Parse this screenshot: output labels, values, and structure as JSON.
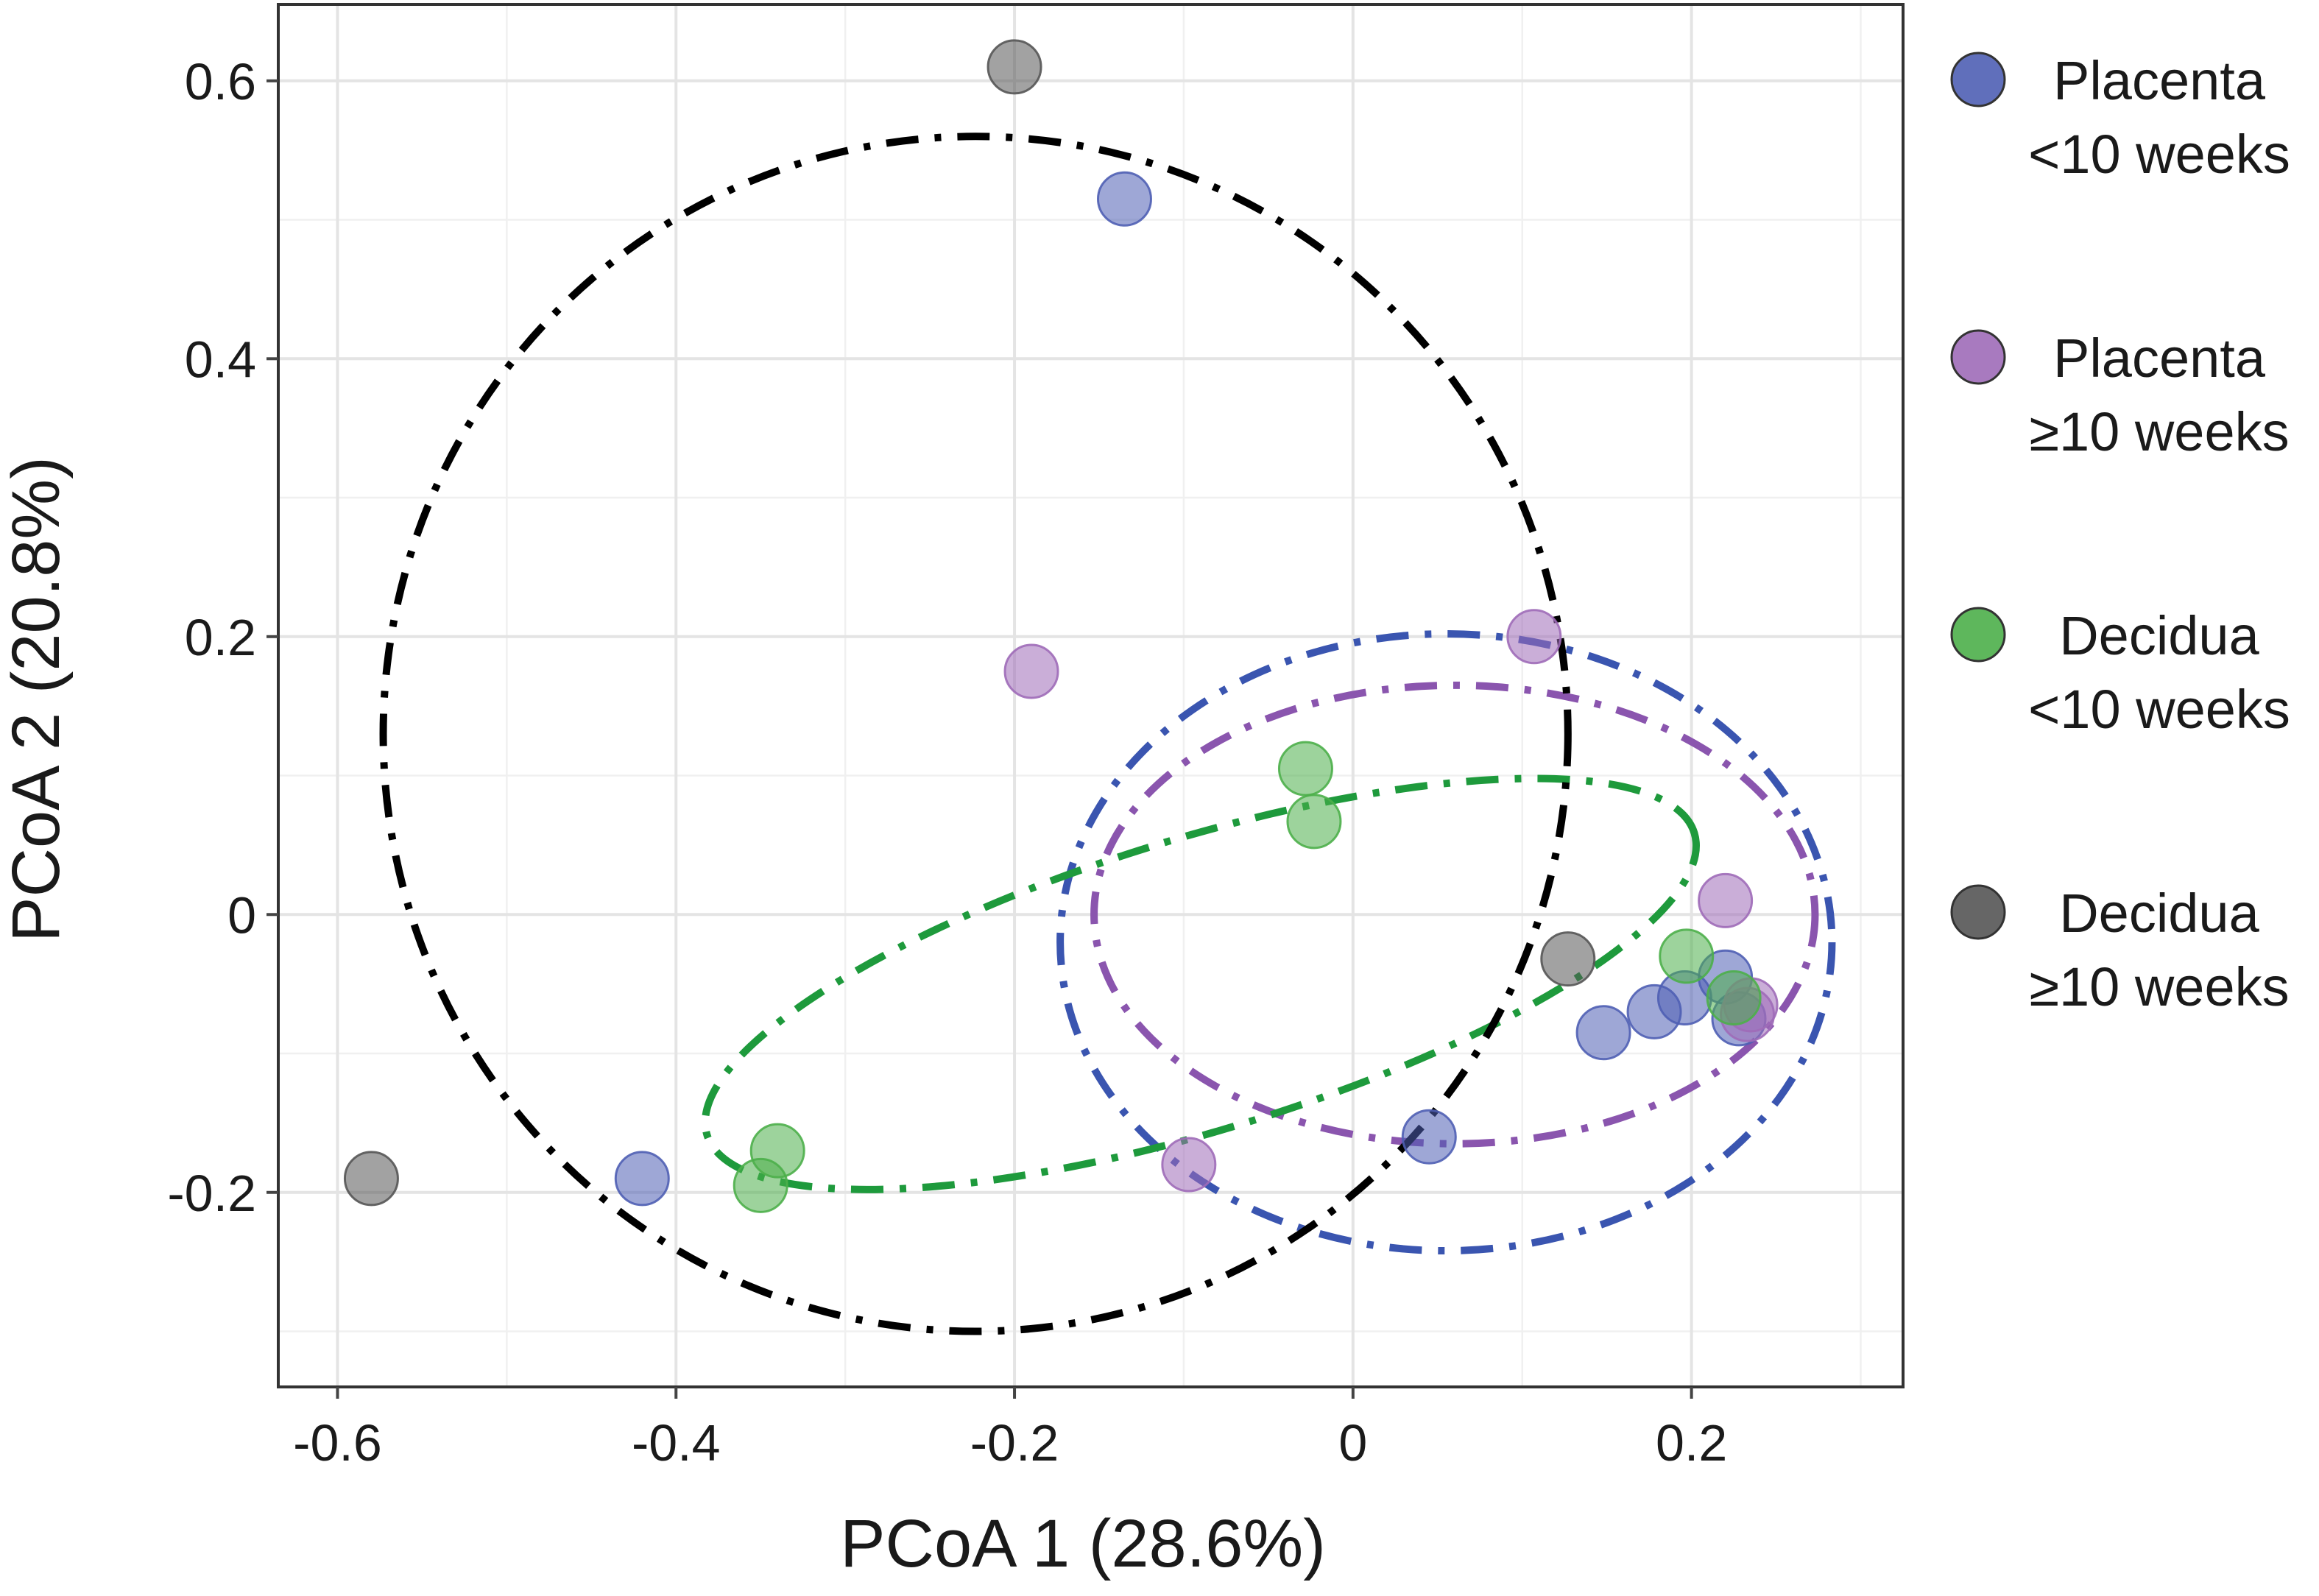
{
  "chart_data": {
    "type": "scatter",
    "title": "",
    "xlabel": "PCoA 1 (28.6%)",
    "ylabel": "PCoA 2 (20.8%)",
    "xlim": [
      -0.635,
      0.325
    ],
    "ylim": [
      -0.34,
      0.655
    ],
    "x_ticks": [
      -0.6,
      -0.4,
      -0.2,
      0,
      0.2
    ],
    "x_tick_labels": [
      "-0.6",
      "-0.4",
      "-0.2",
      "0",
      "0.2"
    ],
    "y_ticks": [
      -0.2,
      0,
      0.2,
      0.4,
      0.6
    ],
    "y_tick_labels": [
      "-0.2",
      "0",
      "0.2",
      "0.4",
      "0.6"
    ],
    "grid": true,
    "legend_position": "right",
    "series": [
      {
        "name": "Placenta <10 weeks",
        "legend_lines": [
          "Placenta",
          "<10 weeks"
        ],
        "color": "#4F5FB4",
        "points": [
          [
            -0.135,
            0.515
          ],
          [
            -0.42,
            -0.19
          ],
          [
            0.045,
            -0.16
          ],
          [
            0.148,
            -0.085
          ],
          [
            0.178,
            -0.07
          ],
          [
            0.196,
            -0.06
          ],
          [
            0.22,
            -0.045
          ],
          [
            0.228,
            -0.075
          ]
        ],
        "ellipse": {
          "center": [
            0.055,
            -0.02
          ],
          "semi_axis_x": 0.228,
          "semi_axis_y": 0.222,
          "angle_deg": 0
        }
      },
      {
        "name": "Placenta ≥10 weeks",
        "legend_lines": [
          "Placenta",
          "≥10 weeks"
        ],
        "color": "#9E6BB8",
        "points": [
          [
            0.107,
            0.2
          ],
          [
            -0.19,
            0.175
          ],
          [
            0.22,
            0.01
          ],
          [
            0.235,
            -0.065
          ],
          [
            0.233,
            -0.072
          ],
          [
            -0.097,
            -0.18
          ]
        ],
        "ellipse": {
          "center": [
            0.06,
            0.0
          ],
          "semi_axis_x": 0.213,
          "semi_axis_y": 0.165,
          "angle_deg": 0
        }
      },
      {
        "name": "Decidua <10 weeks",
        "legend_lines": [
          "Decidua",
          "<10 weeks"
        ],
        "color": "#4DAF4A",
        "points": [
          [
            -0.028,
            0.105
          ],
          [
            -0.023,
            0.067
          ],
          [
            -0.34,
            -0.17
          ],
          [
            -0.35,
            -0.195
          ],
          [
            0.197,
            -0.03
          ],
          [
            0.225,
            -0.06
          ]
        ],
        "ellipse": {
          "center": [
            -0.09,
            -0.05
          ],
          "semi_axis_x": 0.305,
          "semi_axis_y": 0.105,
          "angle_deg": 17
        }
      },
      {
        "name": "Decidua ≥10 weeks",
        "legend_lines": [
          "Decidua",
          "≥10 weeks"
        ],
        "color": "#555555",
        "points": [
          [
            -0.2,
            0.61
          ],
          [
            -0.58,
            -0.19
          ],
          [
            0.127,
            -0.032
          ]
        ],
        "ellipse": {
          "center": [
            -0.223,
            0.13
          ],
          "semi_axis_x": 0.35,
          "semi_axis_y": 0.43,
          "angle_deg": 0
        }
      }
    ]
  }
}
